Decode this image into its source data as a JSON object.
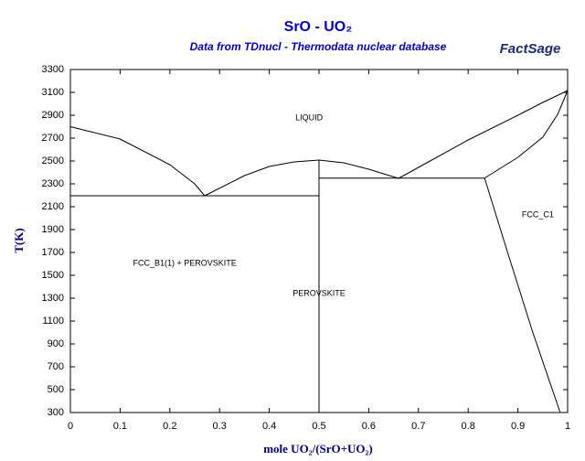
{
  "chart_data": {
    "type": "line",
    "title": "SrO - UO₂",
    "subtitle": "Data from TDnucl - Thermodata nuclear database",
    "logo": "FactSage",
    "x_label": "mole UO₂/(SrO+UO₂)",
    "y_label": "T(K)",
    "xlim": [
      0,
      1
    ],
    "xticks": [
      0,
      0.1,
      0.2,
      0.3,
      0.4,
      0.5,
      0.6,
      0.7,
      0.8,
      0.9,
      1
    ],
    "ylim": [
      300,
      3300
    ],
    "yticks": [
      300,
      500,
      700,
      900,
      1100,
      1300,
      1500,
      1700,
      1900,
      2100,
      2300,
      2500,
      2700,
      2900,
      3100,
      3300
    ],
    "grid": false,
    "series": [
      {
        "color": "#000000",
        "x": [
          0,
          0.1,
          0.2,
          0.25,
          0.27
        ],
        "values": [
          2800,
          2692,
          2468,
          2300,
          2196
        ]
      },
      {
        "color": "#000000",
        "x": [
          0.27,
          0.35,
          0.4,
          0.45,
          0.5,
          0.55,
          0.6,
          0.66
        ],
        "values": [
          2196,
          2372,
          2452,
          2492,
          2508,
          2484,
          2428,
          2348
        ]
      },
      {
        "color": "#000000",
        "x": [
          0.66,
          0.7,
          0.8,
          0.9,
          0.95,
          1
        ],
        "values": [
          2348,
          2444,
          2684,
          2900,
          3012,
          3116
        ]
      },
      {
        "color": "#000000",
        "x": [
          0.833,
          0.9,
          0.95,
          0.98,
          1
        ],
        "values": [
          2350,
          2532,
          2708,
          2908,
          3116
        ]
      },
      {
        "color": "#000000",
        "x": [
          0.833,
          0.88,
          0.93,
          0.985
        ],
        "values": [
          2350,
          1690,
          1000,
          300
        ]
      },
      {
        "color": "#000000",
        "x": [
          0,
          0.5
        ],
        "values": [
          2196,
          2196
        ]
      },
      {
        "color": "#000000",
        "x": [
          0.5,
          0.833
        ],
        "values": [
          2350,
          2350
        ]
      },
      {
        "color": "#000000",
        "x": [
          0.5,
          0.5
        ],
        "values": [
          300,
          2508
        ]
      }
    ],
    "annotations": [
      {
        "text": "LIQUID",
        "x": 0.48,
        "y": 2876
      },
      {
        "text": "FCC_C1",
        "x": 0.94,
        "y": 2028
      },
      {
        "text": "FCC_B1(1) + PEROVSKITE",
        "x": 0.23,
        "y": 1604
      },
      {
        "text": "PEROVSKITE",
        "x": 0.5,
        "y": 1340
      }
    ]
  }
}
